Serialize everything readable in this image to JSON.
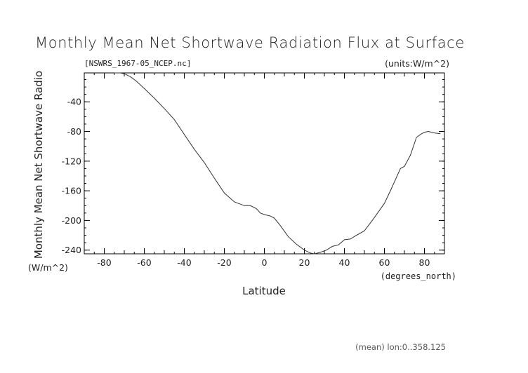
{
  "chart_data": {
    "type": "line",
    "title": "Monthly Mean Net Shortwave Radiation Flux at Surface",
    "file_label": "[NSWRS_1967-05_NCEP.nc]",
    "units_label": "(units:W/m^2)",
    "ylabel": "Monthly Mean Net Shortwave Radio",
    "ylabel_units": "(W/m^2)",
    "xlabel": "Latitude",
    "xlabel_units": "(degrees_north)",
    "footnote": "(mean) lon:0..358.125",
    "xlim": [
      -90,
      90
    ],
    "ylim": [
      -245,
      -1
    ],
    "x_ticks": [
      -80,
      -60,
      -40,
      -20,
      0,
      20,
      40,
      60,
      80
    ],
    "y_ticks": [
      -240,
      -200,
      -160,
      -120,
      -80,
      -40
    ],
    "grid": false,
    "series": [
      {
        "x": [
          -75,
          -72,
          -70,
          -67,
          -64,
          -60,
          -55,
          -50,
          -45,
          -40,
          -35,
          -30,
          -25,
          -20,
          -15,
          -10,
          -7,
          -4,
          -2,
          0,
          3,
          5,
          8,
          12,
          16,
          20,
          23,
          25,
          28,
          31,
          34,
          37,
          40,
          43,
          46,
          50,
          55,
          60,
          63,
          66,
          68,
          70,
          73,
          76,
          78,
          80,
          82,
          85,
          88
        ],
        "y": [
          -1,
          -1,
          -2,
          -6,
          -12,
          -22,
          -35,
          -49,
          -64,
          -84,
          -104,
          -122,
          -143,
          -163,
          -175,
          -180,
          -180,
          -184,
          -190,
          -192,
          -194,
          -197,
          -207,
          -222,
          -232,
          -240,
          -244,
          -245,
          -243,
          -240,
          -235,
          -233,
          -226,
          -225,
          -220,
          -214,
          -196,
          -177,
          -160,
          -142,
          -130,
          -127,
          -112,
          -88,
          -84,
          -81,
          -80,
          -82,
          -83
        ]
      }
    ]
  }
}
